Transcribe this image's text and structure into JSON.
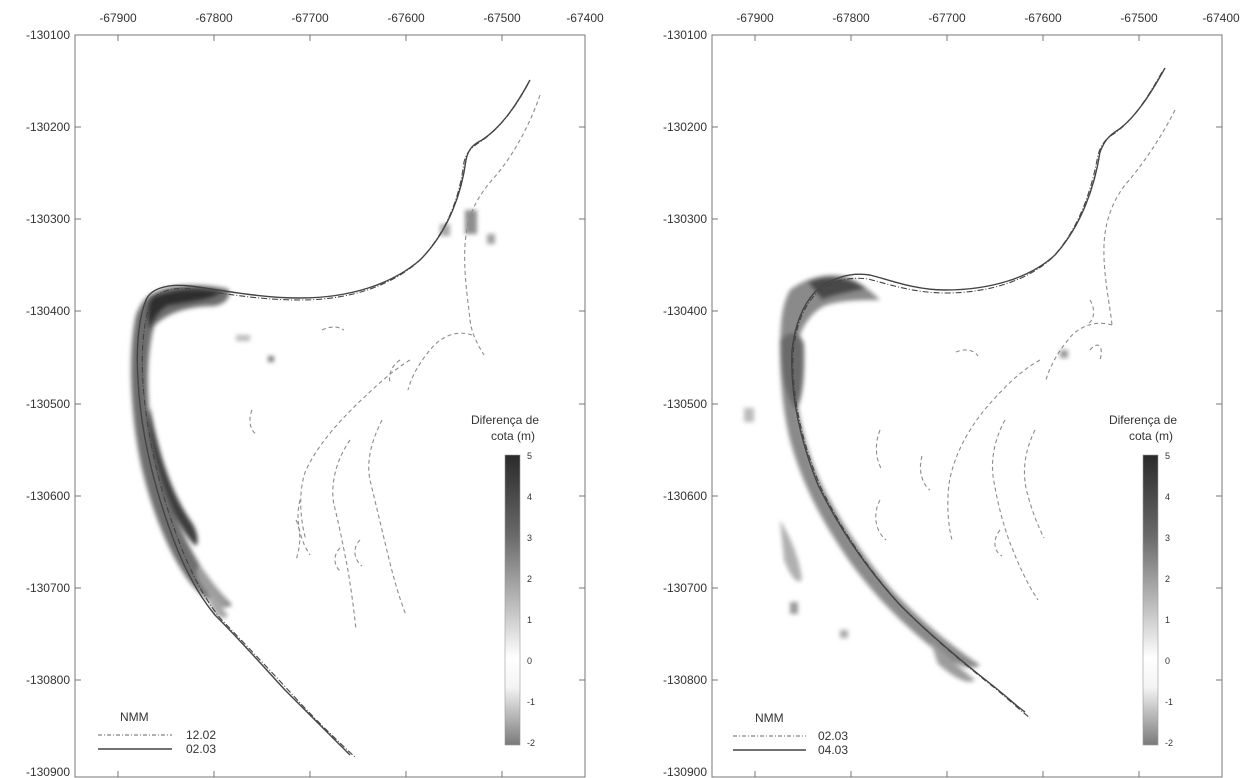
{
  "maps": [
    {
      "x_ticks": [
        "-67900",
        "-67800",
        "-67700",
        "-67600",
        "-67500",
        "-67400"
      ],
      "y_ticks": [
        "-130100",
        "-130200",
        "-130300",
        "-130400",
        "-130500",
        "-130600",
        "-130700",
        "-130800",
        "-130900"
      ],
      "xlim": [
        -67925,
        -67395
      ],
      "ylim": [
        -130900,
        -130100
      ],
      "colorbar": {
        "title_line1": "Diferença de",
        "title_line2": "cota (m)",
        "ticks": [
          "5",
          "4",
          "3",
          "2",
          "1",
          "0",
          "-1",
          "-2"
        ]
      },
      "legend": {
        "title": "NMM",
        "entries": [
          {
            "label": "12.02",
            "style": "dotted"
          },
          {
            "label": "02.03",
            "style": "solid"
          }
        ]
      }
    },
    {
      "x_ticks": [
        "-67900",
        "-67800",
        "-67700",
        "-67600",
        "-67500",
        "-67400"
      ],
      "y_ticks": [
        "-130100",
        "-130200",
        "-130300",
        "-130400",
        "-130500",
        "-130600",
        "-130700",
        "-130800",
        "-130900"
      ],
      "xlim": [
        -67925,
        -67395
      ],
      "ylim": [
        -130900,
        -130100
      ],
      "colorbar": {
        "title_line1": "Diferença de",
        "title_line2": "cota (m)",
        "ticks": [
          "5",
          "4",
          "3",
          "2",
          "1",
          "0",
          "-1",
          "-2"
        ]
      },
      "legend": {
        "title": "NMM",
        "entries": [
          {
            "label": "02.03",
            "style": "dotted"
          },
          {
            "label": "04.03",
            "style": "solid"
          }
        ]
      }
    }
  ],
  "colors": {
    "frame": "#777777",
    "text": "#333333",
    "shoreline": "#444444",
    "contour": "#8c8c8c",
    "deposit_dark": "#3a3a3a",
    "deposit_mid": "#7a7a7a",
    "deposit_light": "#b8b8b8",
    "erosion": "#9a9a9a"
  }
}
